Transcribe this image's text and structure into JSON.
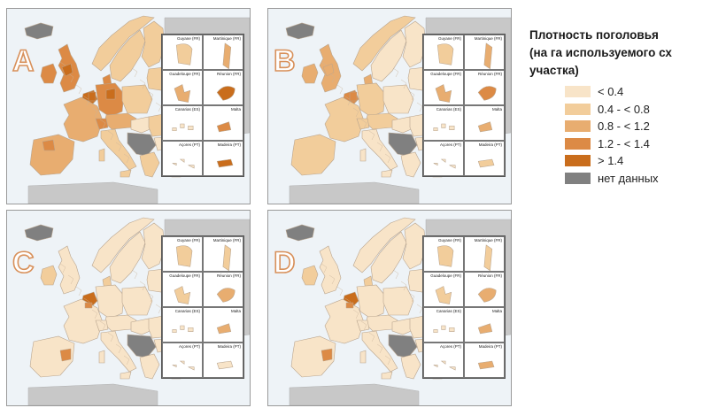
{
  "legend": {
    "title": "Плотность поголовья\n(на га используемого сх\nучастка)",
    "items": [
      {
        "label": "< 0.4",
        "color": "#f8e4c8"
      },
      {
        "label": "0.4 - < 0.8",
        "color": "#f2cd9b"
      },
      {
        "label": "0.8 - < 1.2",
        "color": "#e8ad70"
      },
      {
        "label": "1.2 - < 1.4",
        "color": "#dc8a45"
      },
      {
        "label": "> 1.4",
        "color": "#c96d1c"
      },
      {
        "label": "нет данных",
        "color": "#808080"
      }
    ]
  },
  "insets": [
    {
      "label": "Guyane (FR)",
      "shape": "guyane"
    },
    {
      "label": "Martinique (FR)",
      "shape": "martinique"
    },
    {
      "label": "Guadeloupe (FR)",
      "shape": "guadeloupe"
    },
    {
      "label": "Réunion (FR)",
      "shape": "reunion"
    },
    {
      "label": "Canarias (ES)",
      "shape": "canarias"
    },
    {
      "label": "Malta",
      "shape": "malta"
    },
    {
      "label": "Açores (PT)",
      "shape": "acores"
    },
    {
      "label": "Madeira (PT)",
      "shape": "madeira"
    }
  ],
  "maps": [
    {
      "letter": "A",
      "intensity": "high",
      "inset_colors": [
        "#f2cd9b",
        "#e8ad70",
        "#e8ad70",
        "#c96d1c",
        "#f8e4c8",
        "#dc8a45",
        "#f8e4c8",
        "#c96d1c"
      ]
    },
    {
      "letter": "B",
      "intensity": "medium",
      "inset_colors": [
        "#f2cd9b",
        "#e8ad70",
        "#e8ad70",
        "#dc8a45",
        "#f8e4c8",
        "#e8ad70",
        "#f8e4c8",
        "#f2cd9b"
      ]
    },
    {
      "letter": "C",
      "intensity": "low",
      "inset_colors": [
        "#f2cd9b",
        "#f2cd9b",
        "#f2cd9b",
        "#e8ad70",
        "#f8e4c8",
        "#e8ad70",
        "#f8e4c8",
        "#f8e4c8"
      ]
    },
    {
      "letter": "D",
      "intensity": "low",
      "inset_colors": [
        "#f2cd9b",
        "#f2cd9b",
        "#f2cd9b",
        "#e8ad70",
        "#f8e4c8",
        "#e8ad70",
        "#f8e4c8",
        "#e8ad70"
      ]
    }
  ]
}
